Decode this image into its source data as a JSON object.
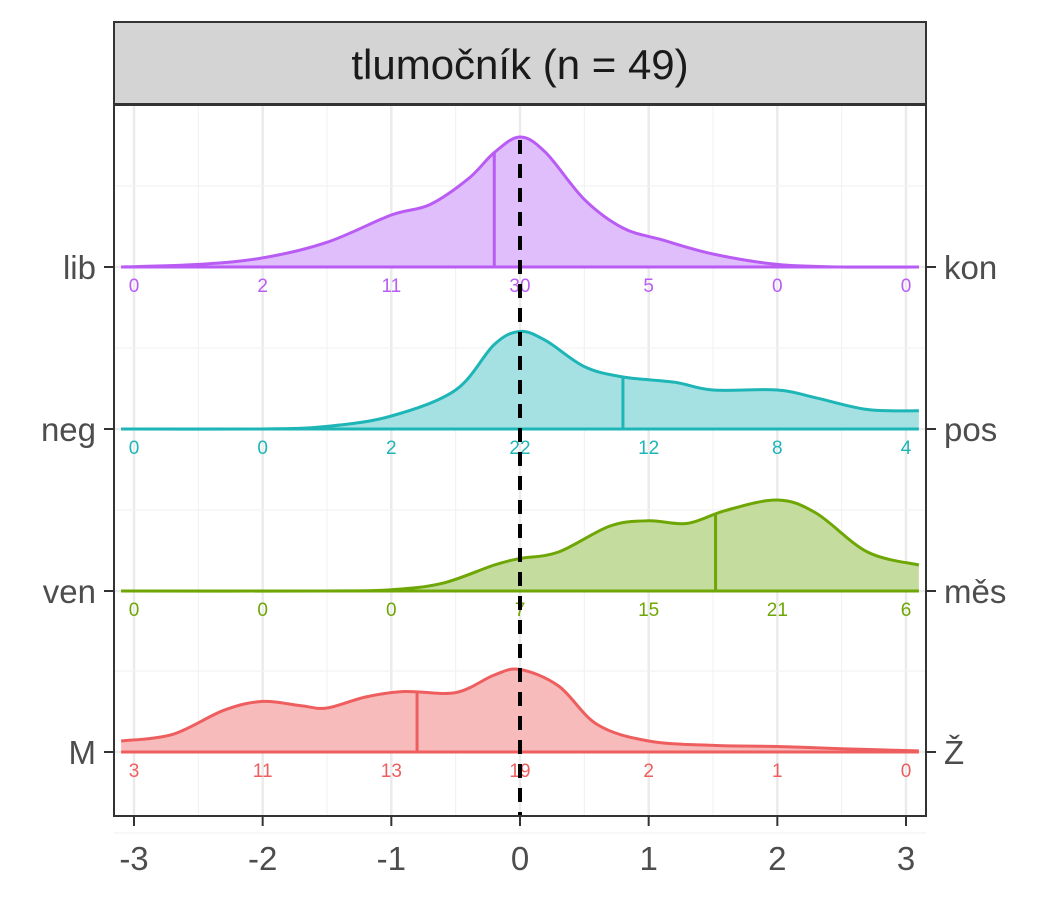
{
  "chart_data": {
    "type": "ridgeline-density",
    "title": "tlumočník (n = 49)",
    "xlabel": "",
    "ylabel": "",
    "xlim": [
      -3.1,
      3.1
    ],
    "x_ticks": [
      "-3",
      "-2",
      "-1",
      "0",
      "1",
      "2",
      "3"
    ],
    "x_tick_values": [
      -3,
      -2,
      -1,
      0,
      1,
      2,
      3
    ],
    "reference_line_x": 0,
    "grid": true,
    "count_positions": [
      -3,
      -2,
      -1,
      0,
      1,
      2,
      3
    ],
    "series": [
      {
        "left_label": "lib",
        "right_label": "kon",
        "color": "#B95CF4",
        "fill": "#E0BDFB",
        "mean": -0.2,
        "counts": [
          "0",
          "2",
          "11",
          "30",
          "5",
          "0",
          "0"
        ],
        "density": [
          [
            -3.1,
            0.0
          ],
          [
            -2.5,
            0.02
          ],
          [
            -2.0,
            0.07
          ],
          [
            -1.5,
            0.19
          ],
          [
            -1.0,
            0.4
          ],
          [
            -0.7,
            0.48
          ],
          [
            -0.4,
            0.68
          ],
          [
            -0.2,
            0.88
          ],
          [
            0.0,
            1.0
          ],
          [
            0.2,
            0.88
          ],
          [
            0.5,
            0.52
          ],
          [
            0.8,
            0.3
          ],
          [
            1.1,
            0.21
          ],
          [
            1.5,
            0.1
          ],
          [
            2.0,
            0.02
          ],
          [
            2.5,
            0.0
          ],
          [
            3.1,
            0.0
          ]
        ]
      },
      {
        "left_label": "neg",
        "right_label": "pos",
        "color": "#1EB5B7",
        "fill": "#A5E1E2",
        "mean": 0.8,
        "counts": [
          "0",
          "0",
          "2",
          "22",
          "12",
          "8",
          "4"
        ],
        "density": [
          [
            -3.1,
            0.0
          ],
          [
            -2.0,
            0.0
          ],
          [
            -1.5,
            0.02
          ],
          [
            -1.0,
            0.1
          ],
          [
            -0.5,
            0.3
          ],
          [
            -0.2,
            0.65
          ],
          [
            0.0,
            0.75
          ],
          [
            0.2,
            0.68
          ],
          [
            0.5,
            0.48
          ],
          [
            0.8,
            0.4
          ],
          [
            1.2,
            0.36
          ],
          [
            1.5,
            0.3
          ],
          [
            2.0,
            0.3
          ],
          [
            2.3,
            0.24
          ],
          [
            2.7,
            0.15
          ],
          [
            3.1,
            0.14
          ]
        ]
      },
      {
        "left_label": "ven",
        "right_label": "měs",
        "color": "#6EA604",
        "fill": "#C5DC9F",
        "mean": 1.52,
        "counts": [
          "0",
          "0",
          "0",
          "7",
          "15",
          "21",
          "6"
        ],
        "density": [
          [
            -3.1,
            0.0
          ],
          [
            -1.5,
            0.0
          ],
          [
            -1.0,
            0.01
          ],
          [
            -0.6,
            0.06
          ],
          [
            -0.2,
            0.2
          ],
          [
            0.0,
            0.25
          ],
          [
            0.3,
            0.3
          ],
          [
            0.7,
            0.5
          ],
          [
            1.0,
            0.54
          ],
          [
            1.3,
            0.52
          ],
          [
            1.6,
            0.62
          ],
          [
            2.0,
            0.7
          ],
          [
            2.3,
            0.6
          ],
          [
            2.7,
            0.3
          ],
          [
            3.1,
            0.2
          ]
        ]
      },
      {
        "left_label": "M",
        "right_label": "Ž",
        "color": "#EE5E5F",
        "fill": "#F8BBBB",
        "mean": -0.8,
        "counts": [
          "3",
          "11",
          "13",
          "19",
          "2",
          "1",
          "0"
        ],
        "density": [
          [
            -3.1,
            0.1
          ],
          [
            -2.7,
            0.16
          ],
          [
            -2.3,
            0.38
          ],
          [
            -2.0,
            0.46
          ],
          [
            -1.7,
            0.42
          ],
          [
            -1.5,
            0.4
          ],
          [
            -1.2,
            0.5
          ],
          [
            -0.9,
            0.55
          ],
          [
            -0.5,
            0.54
          ],
          [
            -0.2,
            0.7
          ],
          [
            0.0,
            0.75
          ],
          [
            0.3,
            0.6
          ],
          [
            0.6,
            0.25
          ],
          [
            1.0,
            0.1
          ],
          [
            1.5,
            0.06
          ],
          [
            2.0,
            0.05
          ],
          [
            2.5,
            0.03
          ],
          [
            3.1,
            0.01
          ]
        ]
      }
    ]
  }
}
